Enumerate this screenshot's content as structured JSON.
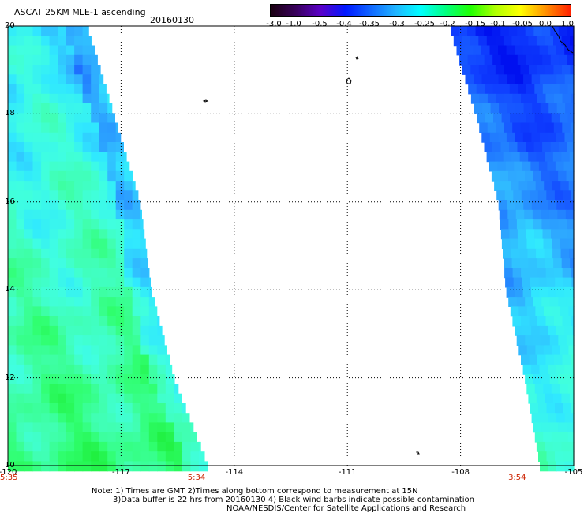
{
  "header": {
    "title": "ASCAT 25KM MLE-1 ascending",
    "date": "20160130"
  },
  "colorbar": {
    "labels": [
      "-3.0",
      "-1.0",
      "-0.5",
      "-0.4",
      "-0.35",
      "-0.3",
      "-0.25",
      "-0.2",
      "-0.15",
      "-0.1",
      "-0.05",
      "0.0",
      "1.0"
    ],
    "colors": [
      "#1a0010",
      "#38005a",
      "#5a00c8",
      "#0018ff",
      "#1066ff",
      "#20b4ff",
      "#00ffff",
      "#00ff80",
      "#20ff00",
      "#b0ff00",
      "#ffff00",
      "#ff9000",
      "#ff2000"
    ]
  },
  "axes": {
    "lat_ticks": [
      "20",
      "18",
      "16",
      "14",
      "12",
      "10"
    ],
    "lon_ticks": [
      "-120",
      "-117",
      "-114",
      "-111",
      "-108",
      "-105"
    ],
    "lat_range": [
      10,
      20
    ],
    "lon_range": [
      -120,
      -105
    ]
  },
  "pass_times": [
    "5:35",
    "5:34",
    "3:54"
  ],
  "notes": [
    "Note: 1) Times are GMT 2)Times along bottom correspond to measurement at 15N",
    "3)Data buffer is 22 hrs from 20160130 4) Black wind barbs indicate possible contamination",
    "NOAA/NESDIS/Center for Satellite Applications and Research"
  ],
  "swaths": [
    {
      "name": "west swath",
      "west_lon": -120,
      "east_edge_by_lat": [
        [
          20,
          -117.9
        ],
        [
          18,
          -117.2
        ],
        [
          16,
          -116.5
        ],
        [
          14,
          -116.2
        ],
        [
          12,
          -115.6
        ],
        [
          10,
          -114.7
        ]
      ],
      "dominant_value_range": [
        "-0.3",
        "-0.2"
      ]
    },
    {
      "name": "east swath",
      "east_lon": -105,
      "west_edge_by_lat": [
        [
          20,
          -108.3
        ],
        [
          18,
          -107.6
        ],
        [
          16,
          -107.0
        ],
        [
          14,
          -106.8
        ],
        [
          12,
          -106.3
        ],
        [
          10,
          -105.9
        ]
      ],
      "dominant_value_range": [
        "-0.4",
        "-0.25"
      ]
    }
  ]
}
